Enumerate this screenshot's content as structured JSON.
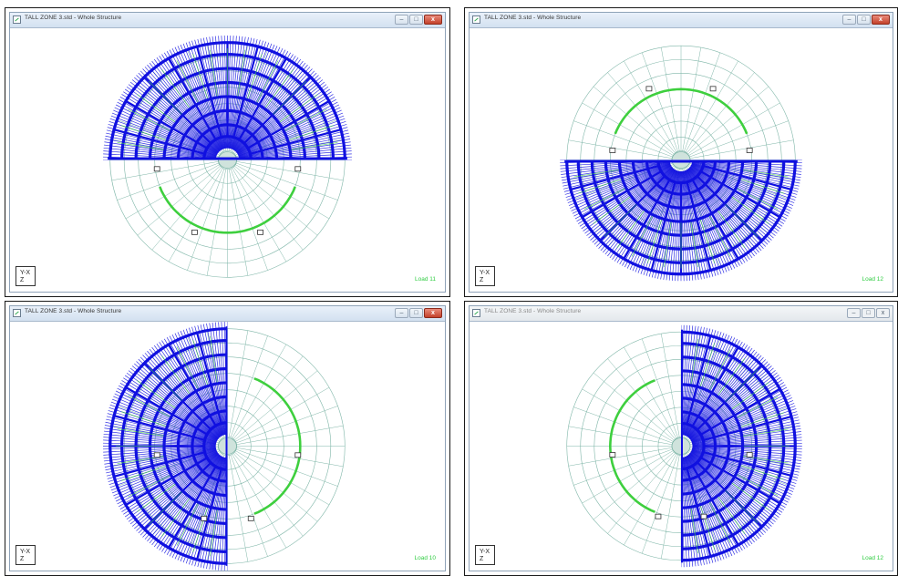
{
  "windows": [
    {
      "title": "TALL ZONE 3.std - Whole Structure",
      "load_label": "Load 11",
      "active_buttons": true,
      "orientation": "top-loaded"
    },
    {
      "title": "TALL ZONE 3.std - Whole Structure",
      "load_label": "Load 12",
      "active_buttons": true,
      "orientation": "bottom-loaded"
    },
    {
      "title": "TALL ZONE 3.std - Whole Structure",
      "load_label": "Load 10",
      "active_buttons": true,
      "orientation": "left-loaded"
    },
    {
      "title": "TALL ZONE 3.std - Whole Structure",
      "load_label": "Load 12",
      "active_buttons": false,
      "orientation": "right-loaded"
    }
  ],
  "axis_indicator": {
    "top": "Y-X",
    "bottom": "Z"
  },
  "icons": {
    "minimize": "minimize-icon",
    "maximize": "maximize-icon",
    "close": "close-icon"
  },
  "colors": {
    "load_blue": "#1010e0",
    "member_green": "#3ecf3e",
    "mesh_teal": "#7fb6a8",
    "label_green": "#2ecc40"
  }
}
